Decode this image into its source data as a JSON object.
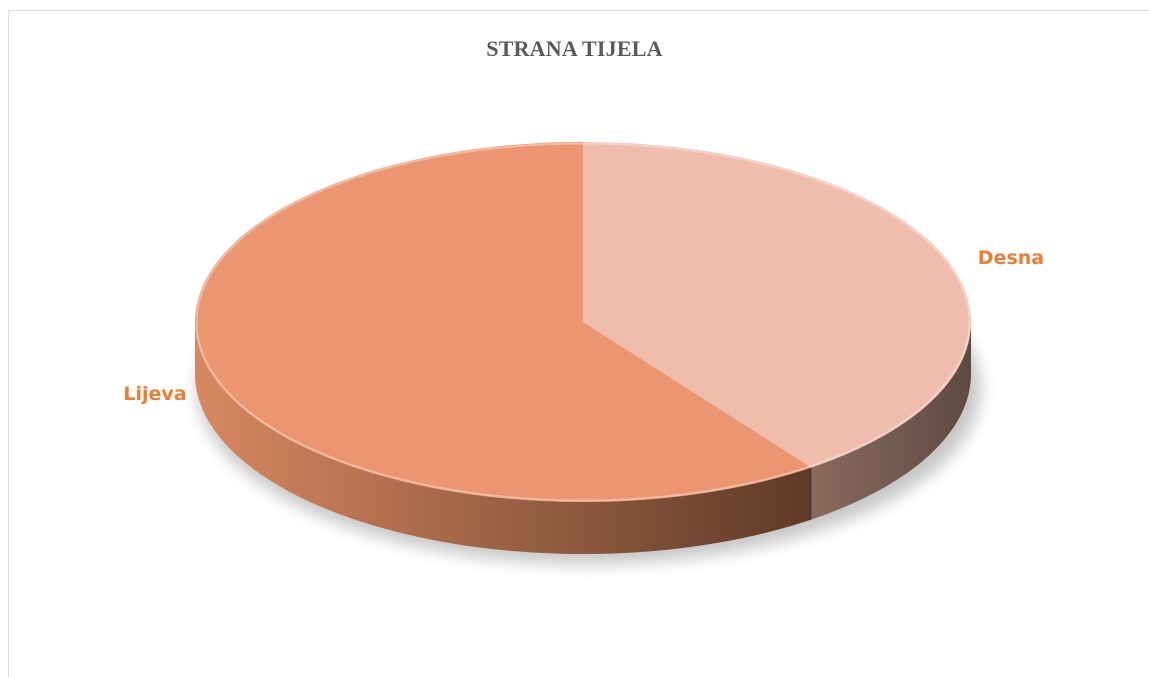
{
  "chart_data": {
    "type": "pie",
    "variant": "3d",
    "title": "STRANA TIJELA",
    "slices": [
      {
        "label": "Desna",
        "value": 40,
        "color": "#F0BCAC",
        "side_dark": "#5E4A42",
        "side_light": "#8A6A5C"
      },
      {
        "label": "Lijeva",
        "value": 60,
        "color": "#EB9670",
        "side_dark": "#5E3A28",
        "side_light": "#D88860"
      }
    ],
    "label_color": "#ED7D31",
    "legend": "none"
  }
}
